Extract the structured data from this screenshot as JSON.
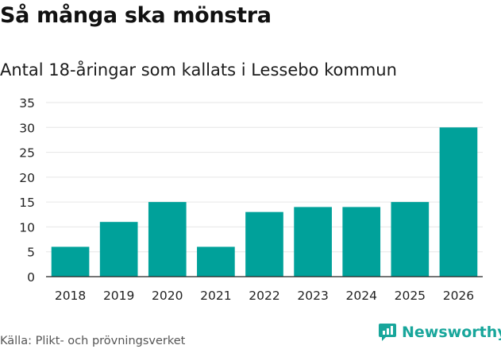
{
  "header": {
    "title": "Så många ska mönstra",
    "subtitle": "Antal 18-åringar som kallats i Lessebo kommun"
  },
  "footer": {
    "source": "Källa: Plikt- och prövningsverket",
    "brand": "Newsworthy"
  },
  "colors": {
    "bar": "#00a19a",
    "grid": "#e6e6e6",
    "brand": "#18a69b"
  },
  "chart_data": {
    "type": "bar",
    "title": "Så många ska mönstra",
    "subtitle": "Antal 18-åringar som kallats i Lessebo kommun",
    "categories": [
      "2018",
      "2019",
      "2020",
      "2021",
      "2022",
      "2023",
      "2024",
      "2025",
      "2026"
    ],
    "values": [
      6,
      11,
      15,
      6,
      13,
      14,
      14,
      15,
      30
    ],
    "yticks": [
      0,
      5,
      10,
      15,
      20,
      25,
      30,
      35
    ],
    "ylim": [
      0,
      35
    ],
    "xlabel": "",
    "ylabel": "",
    "grid": true
  }
}
